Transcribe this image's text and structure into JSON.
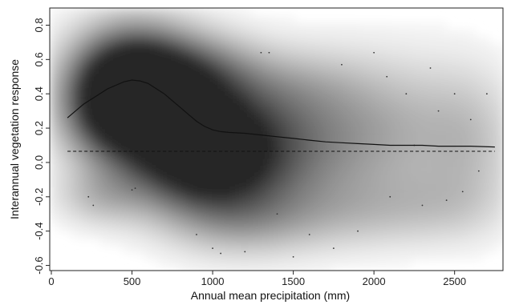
{
  "chart_data": {
    "type": "scatter",
    "title": "",
    "xlabel": "Annual mean precipitation (mm)",
    "ylabel": "Interannual vegetation response",
    "xlim": [
      -10,
      2800
    ],
    "ylim": [
      -0.63,
      0.9
    ],
    "x_ticks": [
      0,
      500,
      1000,
      1500,
      2000,
      2500
    ],
    "x_tick_labels": [
      "0",
      "500",
      "1000",
      "1500",
      "2000",
      "2500"
    ],
    "y_ticks": [
      -0.6,
      -0.4,
      -0.2,
      0.0,
      0.2,
      0.4,
      0.6,
      0.8
    ],
    "y_tick_labels": [
      "-0.6",
      "-0.4",
      "-0.2",
      "0.0",
      "0.2",
      "0.4",
      "0.6",
      "0.8"
    ],
    "grid": false,
    "legend": "none",
    "point_density_shading": true,
    "series": [
      {
        "style": "solid-line",
        "x": [
          100,
          150,
          200,
          250,
          300,
          350,
          400,
          450,
          500,
          550,
          600,
          650,
          700,
          750,
          800,
          850,
          900,
          950,
          1000,
          1050,
          1100,
          1200,
          1300,
          1400,
          1500,
          1600,
          1700,
          1800,
          1900,
          2000,
          2100,
          2200,
          2300,
          2400,
          2500,
          2600,
          2750
        ],
        "y": [
          0.26,
          0.3,
          0.34,
          0.37,
          0.4,
          0.43,
          0.45,
          0.47,
          0.48,
          0.475,
          0.46,
          0.43,
          0.4,
          0.36,
          0.32,
          0.28,
          0.24,
          0.21,
          0.19,
          0.18,
          0.175,
          0.17,
          0.16,
          0.15,
          0.14,
          0.13,
          0.12,
          0.115,
          0.11,
          0.105,
          0.1,
          0.1,
          0.1,
          0.095,
          0.095,
          0.095,
          0.09
        ]
      },
      {
        "style": "dashed-line",
        "x": [
          100,
          2750
        ],
        "y": [
          0.065,
          0.065
        ]
      }
    ],
    "density_blobs": [
      {
        "x": 500,
        "y": 0.5,
        "sx": 260,
        "sy": 0.22,
        "w": 0.9
      },
      {
        "x": 350,
        "y": 0.3,
        "sx": 220,
        "sy": 0.22,
        "w": 0.65
      },
      {
        "x": 700,
        "y": 0.3,
        "sx": 260,
        "sy": 0.25,
        "w": 0.7
      },
      {
        "x": 1000,
        "y": 0.15,
        "sx": 300,
        "sy": 0.25,
        "w": 0.6
      },
      {
        "x": 900,
        "y": -0.05,
        "sx": 300,
        "sy": 0.22,
        "w": 0.5
      },
      {
        "x": 1300,
        "y": 0.05,
        "sx": 350,
        "sy": 0.25,
        "w": 0.35
      },
      {
        "x": 1700,
        "y": 0.15,
        "sx": 400,
        "sy": 0.3,
        "w": 0.28
      },
      {
        "x": 2200,
        "y": 0.2,
        "sx": 400,
        "sy": 0.3,
        "w": 0.22
      },
      {
        "x": 2600,
        "y": 0.1,
        "sx": 200,
        "sy": 0.3,
        "w": 0.18
      },
      {
        "x": 1200,
        "y": -0.35,
        "sx": 300,
        "sy": 0.15,
        "w": 0.22
      },
      {
        "x": 1800,
        "y": -0.3,
        "sx": 400,
        "sy": 0.15,
        "w": 0.18
      },
      {
        "x": 2400,
        "y": -0.25,
        "sx": 300,
        "sy": 0.15,
        "w": 0.14
      },
      {
        "x": 300,
        "y": -0.2,
        "sx": 200,
        "sy": 0.12,
        "w": 0.25
      },
      {
        "x": 1000,
        "y": 0.55,
        "sx": 250,
        "sy": 0.15,
        "w": 0.25
      },
      {
        "x": 1500,
        "y": 0.45,
        "sx": 300,
        "sy": 0.15,
        "w": 0.15
      }
    ],
    "sample_points": [
      {
        "x": 230,
        "y": -0.2
      },
      {
        "x": 260,
        "y": -0.25
      },
      {
        "x": 500,
        "y": -0.16
      },
      {
        "x": 520,
        "y": -0.15
      },
      {
        "x": 900,
        "y": -0.42
      },
      {
        "x": 1000,
        "y": -0.5
      },
      {
        "x": 1050,
        "y": -0.53
      },
      {
        "x": 1200,
        "y": -0.52
      },
      {
        "x": 1300,
        "y": 0.64
      },
      {
        "x": 1350,
        "y": 0.64
      },
      {
        "x": 1500,
        "y": -0.55
      },
      {
        "x": 1600,
        "y": -0.42
      },
      {
        "x": 1750,
        "y": -0.5
      },
      {
        "x": 1800,
        "y": 0.57
      },
      {
        "x": 2000,
        "y": 0.64
      },
      {
        "x": 2080,
        "y": 0.5
      },
      {
        "x": 2100,
        "y": -0.2
      },
      {
        "x": 2200,
        "y": 0.4
      },
      {
        "x": 2300,
        "y": -0.25
      },
      {
        "x": 2350,
        "y": 0.55
      },
      {
        "x": 2400,
        "y": 0.3
      },
      {
        "x": 2450,
        "y": -0.22
      },
      {
        "x": 2500,
        "y": 0.4
      },
      {
        "x": 2550,
        "y": -0.17
      },
      {
        "x": 2600,
        "y": 0.25
      },
      {
        "x": 2650,
        "y": -0.05
      },
      {
        "x": 1900,
        "y": -0.4
      },
      {
        "x": 1400,
        "y": -0.3
      },
      {
        "x": 2700,
        "y": 0.4
      },
      {
        "x": 2250,
        "y": 0.1
      }
    ]
  }
}
